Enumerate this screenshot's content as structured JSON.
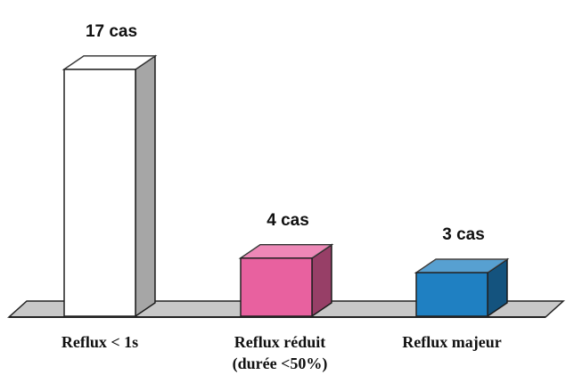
{
  "chart_data": {
    "type": "bar",
    "categories": [
      "Reflux < 1s",
      "Reflux réduit (durée <50%)",
      "Reflux majeur"
    ],
    "values": [
      17,
      4,
      3
    ],
    "value_labels": [
      "17 cas",
      "4 cas",
      "3 cas"
    ],
    "colors": [
      "#ffffff",
      "#e8619f",
      "#1f80c2"
    ]
  }
}
